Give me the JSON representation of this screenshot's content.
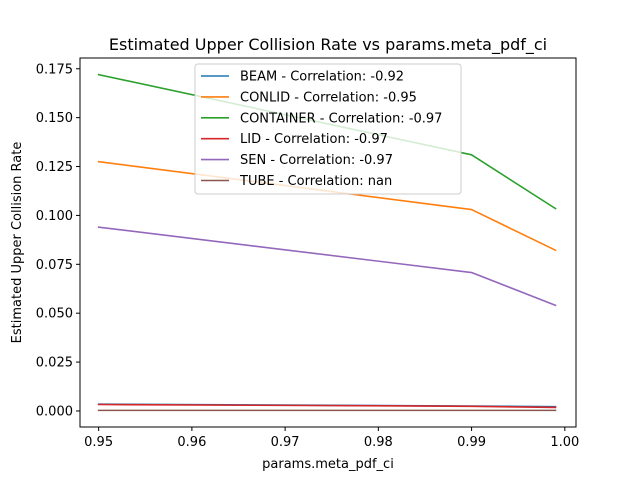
{
  "chart_data": {
    "type": "line",
    "title": "Estimated Upper Collision Rate vs params.meta_pdf_ci",
    "xlabel": "params.meta_pdf_ci",
    "ylabel": "Estimated Upper Collision Rate",
    "xlim": [
      0.948,
      1.0012
    ],
    "ylim": [
      -0.0082,
      0.1805
    ],
    "xticks": [
      0.95,
      0.96,
      0.97,
      0.98,
      0.99,
      1.0
    ],
    "xtick_labels": [
      "0.95",
      "0.96",
      "0.97",
      "0.98",
      "0.99",
      "1.00"
    ],
    "yticks": [
      0.0,
      0.025,
      0.05,
      0.075,
      0.1,
      0.125,
      0.15,
      0.175
    ],
    "ytick_labels": [
      "0.000",
      "0.025",
      "0.050",
      "0.075",
      "0.100",
      "0.125",
      "0.150",
      "0.175"
    ],
    "grid": false,
    "legend_position": "top-center",
    "x": [
      0.95,
      0.99,
      0.999
    ],
    "series": [
      {
        "name": "BEAM - Correlation: -0.92",
        "color": "#1f77b4",
        "values": [
          0.0035,
          0.0025,
          0.0022
        ]
      },
      {
        "name": "CONLID - Correlation: -0.95",
        "color": "#ff7f0e",
        "values": [
          0.1275,
          0.103,
          0.0822
        ]
      },
      {
        "name": "CONTAINER - Correlation: -0.97",
        "color": "#2ca02c",
        "values": [
          0.172,
          0.131,
          0.1035
        ]
      },
      {
        "name": "LID - Correlation: -0.97",
        "color": "#d62728",
        "values": [
          0.0033,
          0.0024,
          0.0018
        ]
      },
      {
        "name": "SEN - Correlation: -0.97",
        "color": "#9467bd",
        "values": [
          0.094,
          0.0708,
          0.054
        ]
      },
      {
        "name": "TUBE - Correlation: nan",
        "color": "#8c564b",
        "values": [
          0.0003,
          0.0003,
          0.0003
        ]
      }
    ]
  }
}
